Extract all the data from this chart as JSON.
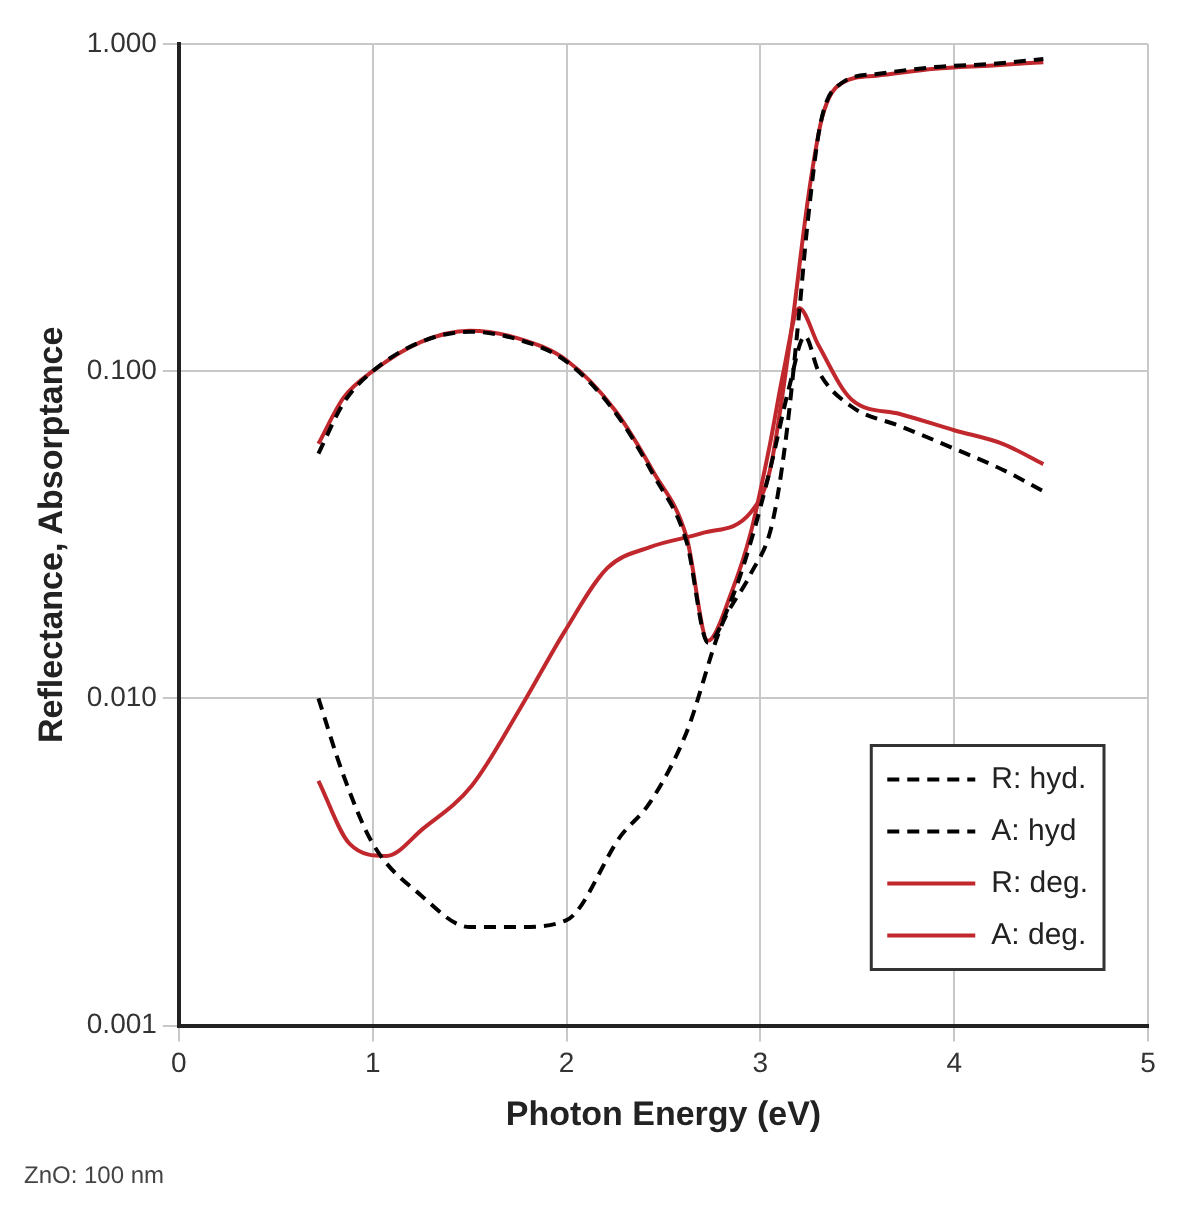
{
  "chart_data": {
    "type": "line",
    "xlabel": "Photon Energy (eV)",
    "ylabel": "Reflectance, Absorptance",
    "log": "y",
    "xlim": [
      0,
      5
    ],
    "xticks": [
      0,
      1,
      2,
      3,
      4,
      5
    ],
    "ylim": [
      0.001,
      1
    ],
    "yticks": [
      {
        "value": 0.001,
        "label": "0.001"
      },
      {
        "value": 0.01,
        "label": "0.010"
      },
      {
        "value": 0.1,
        "label": "0.100"
      },
      {
        "value": 1,
        "label": "1.000"
      }
    ],
    "grid": true,
    "legend": "bottom right",
    "marker": "none",
    "annotations": [
      "ZnO: 100 nm"
    ],
    "series": [
      {
        "name": "R: hyd.",
        "color": "#000000",
        "line_style": "dashed",
        "x": [
          0.72,
          0.85,
          1.0,
          1.25,
          1.5,
          1.75,
          2.0,
          2.25,
          2.45,
          2.62,
          2.73,
          2.85,
          2.95,
          3.05,
          3.15,
          3.23,
          3.3,
          3.47,
          3.72,
          4.0,
          4.25,
          4.46
        ],
        "values": [
          0.056,
          0.08,
          0.1,
          0.123,
          0.132,
          0.125,
          0.107,
          0.075,
          0.048,
          0.03,
          0.0148,
          0.02,
          0.03,
          0.05,
          0.09,
          0.128,
          0.1,
          0.078,
          0.068,
          0.058,
          0.05,
          0.043
        ]
      },
      {
        "name": "A: hyd",
        "color": "#000000",
        "line_style": "dashed",
        "x": [
          0.72,
          0.85,
          1.0,
          1.25,
          1.5,
          1.75,
          2.0,
          2.28,
          2.43,
          2.62,
          2.8,
          2.95,
          3.06,
          3.13,
          3.2,
          3.24,
          3.31,
          3.42,
          3.6,
          3.9,
          4.2,
          4.46
        ],
        "values": [
          0.01,
          0.0058,
          0.0036,
          0.0025,
          0.002,
          0.002,
          0.0021,
          0.0038,
          0.0048,
          0.0079,
          0.0167,
          0.024,
          0.034,
          0.061,
          0.15,
          0.27,
          0.57,
          0.76,
          0.81,
          0.85,
          0.87,
          0.9
        ]
      },
      {
        "name": "R: deg.",
        "color": "#c0282d",
        "line_style": "solid",
        "x": [
          0.72,
          0.85,
          1.0,
          1.25,
          1.5,
          1.75,
          2.0,
          2.25,
          2.45,
          2.62,
          2.73,
          2.85,
          2.95,
          3.05,
          3.12,
          3.2,
          3.3,
          3.47,
          3.72,
          4.0,
          4.25,
          4.46
        ],
        "values": [
          0.06,
          0.083,
          0.1,
          0.123,
          0.133,
          0.126,
          0.108,
          0.076,
          0.049,
          0.031,
          0.015,
          0.021,
          0.032,
          0.06,
          0.1,
          0.156,
          0.12,
          0.082,
          0.074,
          0.066,
          0.06,
          0.052
        ]
      },
      {
        "name": "A: deg.",
        "color": "#c0282d",
        "line_style": "solid",
        "x": [
          0.72,
          0.88,
          1.07,
          1.26,
          1.51,
          1.76,
          1.99,
          2.21,
          2.43,
          2.7,
          2.95,
          3.05,
          3.15,
          3.25,
          3.32,
          3.42,
          3.6,
          3.9,
          4.2,
          4.46
        ],
        "values": [
          0.0056,
          0.0036,
          0.0033,
          0.004,
          0.0054,
          0.0093,
          0.016,
          0.025,
          0.029,
          0.032,
          0.037,
          0.05,
          0.12,
          0.35,
          0.6,
          0.76,
          0.8,
          0.84,
          0.86,
          0.88
        ]
      }
    ]
  }
}
